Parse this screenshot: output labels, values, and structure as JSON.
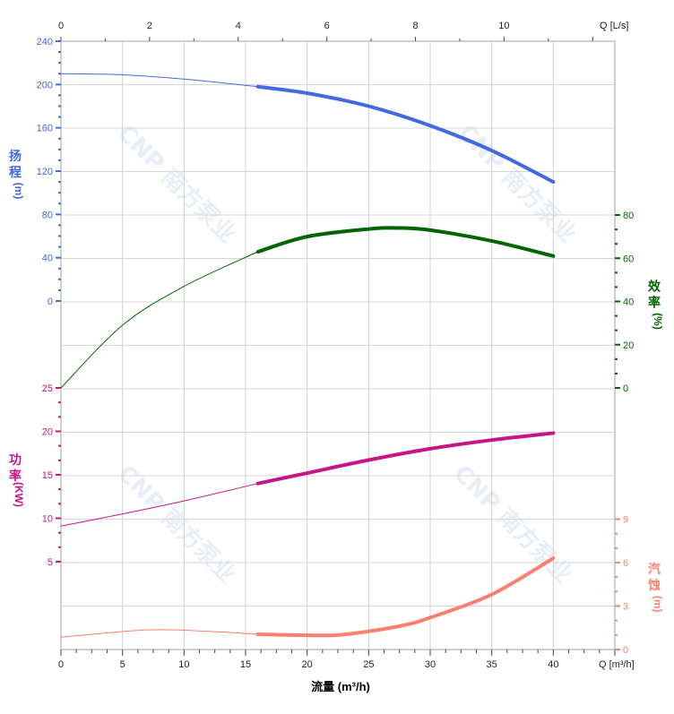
{
  "chart_data": {
    "type": "line",
    "xlabel": "流量 (m³/h)",
    "x_axis_unit": "Q [m³/h]",
    "xlim": [
      0,
      45
    ],
    "x_ticks": [
      0,
      5,
      10,
      15,
      20,
      25,
      30,
      35,
      40
    ],
    "top_axis": {
      "unit": "Q [L/s]",
      "ticks": [
        0,
        2,
        4,
        6,
        8,
        10
      ],
      "lim": [
        0,
        12.5
      ]
    },
    "grid": true,
    "axes": {
      "head": {
        "label": [
          "扬",
          "程",
          "(m)"
        ],
        "ticks": [
          0,
          40,
          80,
          120,
          160,
          200,
          240
        ],
        "color": "#4169e1"
      },
      "efficiency": {
        "label": [
          "效",
          "率",
          "(%)"
        ],
        "ticks": [
          0,
          20,
          40,
          60,
          80
        ],
        "color": "#006400"
      },
      "power": {
        "label": [
          "功",
          "率",
          "(KW)"
        ],
        "ticks": [
          5,
          10,
          15,
          20,
          25
        ],
        "color": "#c71585"
      },
      "npsh": {
        "label": [
          "汽",
          "蚀",
          "(m)"
        ],
        "ticks": [
          0,
          3,
          6,
          9
        ],
        "color": "#fa8072"
      }
    },
    "operating_range": [
      16,
      40
    ],
    "series": [
      {
        "key": "head",
        "points": [
          [
            0,
            210
          ],
          [
            5,
            209
          ],
          [
            10,
            205
          ],
          [
            16,
            198
          ],
          [
            20,
            192
          ],
          [
            25,
            180
          ],
          [
            30,
            162
          ],
          [
            35,
            139
          ],
          [
            40,
            110
          ]
        ]
      },
      {
        "key": "efficiency",
        "points": [
          [
            0,
            0
          ],
          [
            5,
            29
          ],
          [
            10,
            47
          ],
          [
            16,
            63
          ],
          [
            20,
            70
          ],
          [
            25,
            73.5
          ],
          [
            27.5,
            74
          ],
          [
            30,
            73
          ],
          [
            35,
            68
          ],
          [
            40,
            61
          ]
        ]
      },
      {
        "key": "power",
        "points": [
          [
            0,
            9.1
          ],
          [
            5,
            10.5
          ],
          [
            10,
            12
          ],
          [
            16,
            14
          ],
          [
            20,
            15.2
          ],
          [
            25,
            16.7
          ],
          [
            30,
            18
          ],
          [
            35,
            19
          ],
          [
            40,
            19.8
          ]
        ]
      },
      {
        "key": "npsh",
        "points": [
          [
            0,
            0.85
          ],
          [
            7,
            1.35
          ],
          [
            12,
            1.25
          ],
          [
            16,
            1.05
          ],
          [
            20,
            0.98
          ],
          [
            22.5,
            1.0
          ],
          [
            25,
            1.25
          ],
          [
            28,
            1.7
          ],
          [
            30,
            2.2
          ],
          [
            35,
            3.8
          ],
          [
            40,
            6.3
          ]
        ]
      }
    ]
  },
  "watermark": "CNP 南方泵业"
}
